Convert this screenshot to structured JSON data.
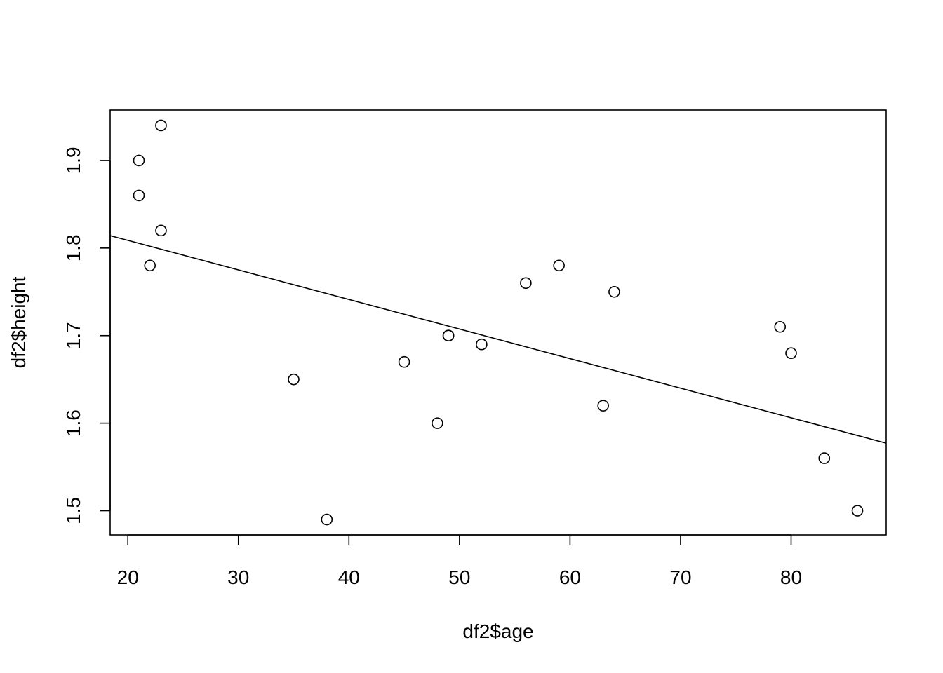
{
  "chart_data": {
    "type": "scatter",
    "title": "",
    "xlabel": "df2$age",
    "ylabel": "df2$height",
    "xlim": [
      18.4,
      88.6
    ],
    "ylim": [
      1.4724,
      1.9576
    ],
    "x_ticks": [
      20,
      30,
      40,
      50,
      60,
      70,
      80
    ],
    "y_ticks": [
      1.5,
      1.6,
      1.7,
      1.8,
      1.9
    ],
    "x_tick_labels": [
      "20",
      "30",
      "40",
      "50",
      "60",
      "70",
      "80"
    ],
    "y_tick_labels": [
      "1.5",
      "1.6",
      "1.7",
      "1.8",
      "1.9"
    ],
    "grid": false,
    "legend": "none",
    "points": [
      {
        "x": 23,
        "y": 1.94
      },
      {
        "x": 21,
        "y": 1.9
      },
      {
        "x": 21,
        "y": 1.86
      },
      {
        "x": 23,
        "y": 1.82
      },
      {
        "x": 22,
        "y": 1.78
      },
      {
        "x": 35,
        "y": 1.65
      },
      {
        "x": 38,
        "y": 1.49
      },
      {
        "x": 45,
        "y": 1.67
      },
      {
        "x": 48,
        "y": 1.6
      },
      {
        "x": 49,
        "y": 1.7
      },
      {
        "x": 49,
        "y": 1.7
      },
      {
        "x": 52,
        "y": 1.69
      },
      {
        "x": 56,
        "y": 1.76
      },
      {
        "x": 59,
        "y": 1.78
      },
      {
        "x": 63,
        "y": 1.62
      },
      {
        "x": 64,
        "y": 1.75
      },
      {
        "x": 79,
        "y": 1.71
      },
      {
        "x": 80,
        "y": 1.68
      },
      {
        "x": 83,
        "y": 1.56
      },
      {
        "x": 86,
        "y": 1.5
      }
    ],
    "regression_line": {
      "intercept": 1.8763,
      "slope": -0.003376
    }
  }
}
